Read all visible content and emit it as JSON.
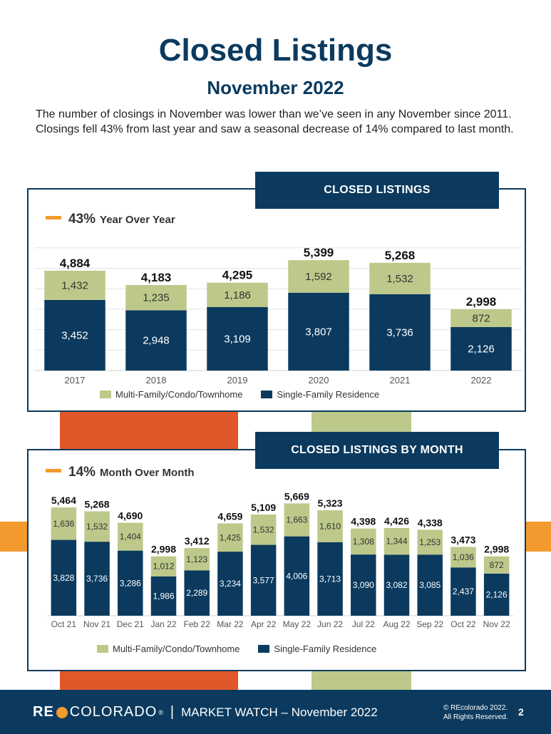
{
  "page": {
    "title": "Closed Listings",
    "subtitle": "November 2022",
    "intro": "The number of closings in November was lower than we’ve seen in any November since 2011. Closings fell 43% from last year and saw a seasonal decrease of 14% compared to last month."
  },
  "colors": {
    "navy": "#0b3a5e",
    "green": "#bcc98a",
    "orange": "#f29a2e",
    "red_orange": "#e0572a"
  },
  "yearly": {
    "banner": "CLOSED LISTINGS",
    "metric_value": "43%",
    "metric_label": "Year Over Year"
  },
  "monthly": {
    "banner": "CLOSED LISTINGS BY MONTH",
    "metric_value": "14%",
    "metric_label": "Month Over Month"
  },
  "chart_data": [
    {
      "type": "bar",
      "stacked": true,
      "categories": [
        "2017",
        "2018",
        "2019",
        "2020",
        "2021",
        "2022"
      ],
      "series": [
        {
          "name": "Single-Family Residence",
          "color": "#0b3a5e",
          "values": [
            3452,
            2948,
            3109,
            3807,
            3736,
            2126
          ]
        },
        {
          "name": "Multi-Family/Condo/Townhome",
          "color": "#bcc98a",
          "values": [
            1432,
            1235,
            1186,
            1592,
            1532,
            872
          ]
        }
      ],
      "totals": [
        4884,
        4183,
        4295,
        5399,
        5268,
        2998
      ],
      "legend_order": [
        "Multi-Family/Condo/Townhome",
        "Single-Family Residence"
      ],
      "legend": "bottom",
      "grid": true
    },
    {
      "type": "bar",
      "stacked": true,
      "categories": [
        "Oct 21",
        "Nov 21",
        "Dec 21",
        "Jan 22",
        "Feb 22",
        "Mar 22",
        "Apr 22",
        "May 22",
        "Jun 22",
        "Jul 22",
        "Aug 22",
        "Sep 22",
        "Oct 22",
        "Nov 22"
      ],
      "series": [
        {
          "name": "Single-Family Residence",
          "color": "#0b3a5e",
          "values": [
            3828,
            3736,
            3286,
            1986,
            2289,
            3234,
            3577,
            4006,
            3713,
            3090,
            3082,
            3085,
            2437,
            2126
          ]
        },
        {
          "name": "Multi-Family/Condo/Townhome",
          "color": "#bcc98a",
          "values": [
            1636,
            1532,
            1404,
            1012,
            1123,
            1425,
            1532,
            1663,
            1610,
            1308,
            1344,
            1253,
            1036,
            872
          ]
        }
      ],
      "totals": [
        5464,
        5268,
        4690,
        2998,
        3412,
        4659,
        5109,
        5669,
        5323,
        4398,
        4426,
        4338,
        3473,
        2998
      ],
      "legend_order": [
        "Multi-Family/Condo/Townhome",
        "Single-Family Residence"
      ],
      "legend": "bottom",
      "grid": false
    }
  ],
  "footer": {
    "logo_re": "RE",
    "logo_colorado": "COLORADO",
    "logo_reg": "®",
    "separator": "|",
    "market_watch": "MARKET WATCH – November 2022",
    "copyright_line1": "© REcolorado 2022.",
    "copyright_line2": "All Rights Reserved.",
    "page_number": "2"
  }
}
